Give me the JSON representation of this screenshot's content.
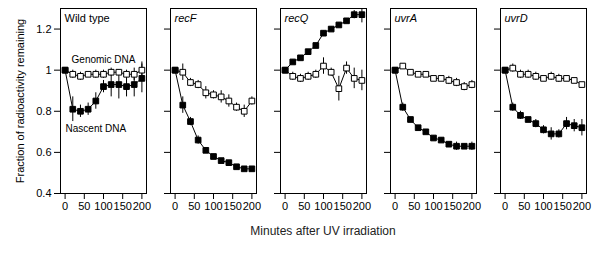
{
  "chart_data": {
    "type": "line",
    "x_label": "Minutes after UV irradiation",
    "y_label": "Fraction of radioactivity remaining",
    "x": [
      0,
      20,
      40,
      60,
      80,
      100,
      120,
      140,
      160,
      180,
      200
    ],
    "xlim": [
      -12,
      212
    ],
    "xticks": [
      0,
      50,
      100,
      150,
      200
    ],
    "ylim": [
      0.4,
      1.3
    ],
    "yticks": [
      0.4,
      0.6,
      0.8,
      1,
      1.2
    ],
    "panels": [
      {
        "title": "Wild type",
        "series": [
          {
            "name": "Genomic DNA",
            "color": "#000000",
            "marker": "square-open",
            "values": [
              1,
              0.98,
              0.97,
              0.98,
              0.98,
              0.98,
              0.99,
              0.99,
              0.98,
              0.98,
              1.0
            ],
            "error": [
              0,
              0.02,
              0.02,
              0.01,
              0.02,
              0.02,
              0.02,
              0.01,
              0.02,
              0.03,
              0.04
            ]
          },
          {
            "name": "Nascent DNA",
            "color": "#000000",
            "marker": "square",
            "values": [
              1,
              0.81,
              0.8,
              0.81,
              0.85,
              0.92,
              0.93,
              0.93,
              0.92,
              0.93,
              0.96
            ],
            "error": [
              0,
              0.06,
              0.03,
              0.03,
              0.04,
              0.03,
              0.06,
              0.07,
              0.05,
              0.06,
              0.07
            ]
          }
        ]
      },
      {
        "title": "recF",
        "series": [
          {
            "name": "Genomic DNA",
            "color": "#000000",
            "marker": "square-open",
            "values": [
              1,
              0.99,
              0.94,
              0.93,
              0.89,
              0.88,
              0.87,
              0.85,
              0.82,
              0.8,
              0.85
            ],
            "error": [
              0,
              0.04,
              0.02,
              0.02,
              0.03,
              0.02,
              0.03,
              0.03,
              0.02,
              0.03,
              0.02
            ]
          },
          {
            "name": "Nascent DNA",
            "color": "#000000",
            "marker": "square",
            "values": [
              1,
              0.83,
              0.75,
              0.66,
              0.61,
              0.58,
              0.56,
              0.55,
              0.53,
              0.52,
              0.52
            ],
            "error": [
              0,
              0.04,
              0.02,
              0.02,
              0.01,
              0.01,
              0.01,
              0.01,
              0.01,
              0.01,
              0.01
            ]
          }
        ]
      },
      {
        "title": "recQ",
        "series": [
          {
            "name": "Genomic DNA",
            "color": "#000000",
            "marker": "square-open",
            "values": [
              1,
              0.97,
              0.96,
              0.97,
              0.98,
              1.02,
              0.99,
              0.91,
              1.01,
              0.96,
              0.95
            ],
            "error": [
              0,
              0.02,
              0.02,
              0.02,
              0.02,
              0.04,
              0.02,
              0.06,
              0.03,
              0.05,
              0.05
            ]
          },
          {
            "name": "Nascent DNA",
            "color": "#000000",
            "marker": "square",
            "values": [
              1,
              1.04,
              1.06,
              1.09,
              1.12,
              1.18,
              1.2,
              1.22,
              1.24,
              1.27,
              1.27
            ],
            "error": [
              0,
              0.01,
              0.01,
              0.01,
              0.01,
              0.01,
              0.01,
              0.01,
              0.01,
              0.02,
              0.04
            ]
          }
        ]
      },
      {
        "title": "uvrA",
        "series": [
          {
            "name": "Genomic DNA",
            "color": "#000000",
            "marker": "square-open",
            "values": [
              1,
              1.02,
              0.99,
              0.98,
              0.98,
              0.96,
              0.96,
              0.95,
              0.94,
              0.92,
              0.93
            ],
            "error": [
              0,
              0.01,
              0.01,
              0.01,
              0.01,
              0.01,
              0.01,
              0.02,
              0.02,
              0.02,
              0.02
            ]
          },
          {
            "name": "Nascent DNA",
            "color": "#000000",
            "marker": "square",
            "values": [
              1,
              0.82,
              0.76,
              0.72,
              0.7,
              0.67,
              0.66,
              0.64,
              0.63,
              0.63,
              0.63
            ],
            "error": [
              0,
              0.02,
              0.01,
              0.01,
              0.01,
              0.01,
              0.01,
              0.01,
              0.02,
              0.01,
              0.02
            ]
          }
        ]
      },
      {
        "title": "uvrD",
        "series": [
          {
            "name": "Genomic DNA",
            "color": "#000000",
            "marker": "square-open",
            "values": [
              1,
              1.01,
              0.98,
              0.98,
              0.97,
              0.96,
              0.97,
              0.96,
              0.96,
              0.95,
              0.93
            ],
            "error": [
              0,
              0.02,
              0.02,
              0.02,
              0.02,
              0.01,
              0.02,
              0.02,
              0.01,
              0.01,
              0.01
            ]
          },
          {
            "name": "Nascent DNA",
            "color": "#000000",
            "marker": "square",
            "values": [
              1,
              0.82,
              0.78,
              0.76,
              0.74,
              0.71,
              0.69,
              0.69,
              0.74,
              0.73,
              0.72
            ],
            "error": [
              0,
              0.02,
              0.02,
              0.01,
              0.02,
              0.02,
              0.03,
              0.02,
              0.03,
              0.03,
              0.04
            ]
          }
        ]
      }
    ]
  }
}
